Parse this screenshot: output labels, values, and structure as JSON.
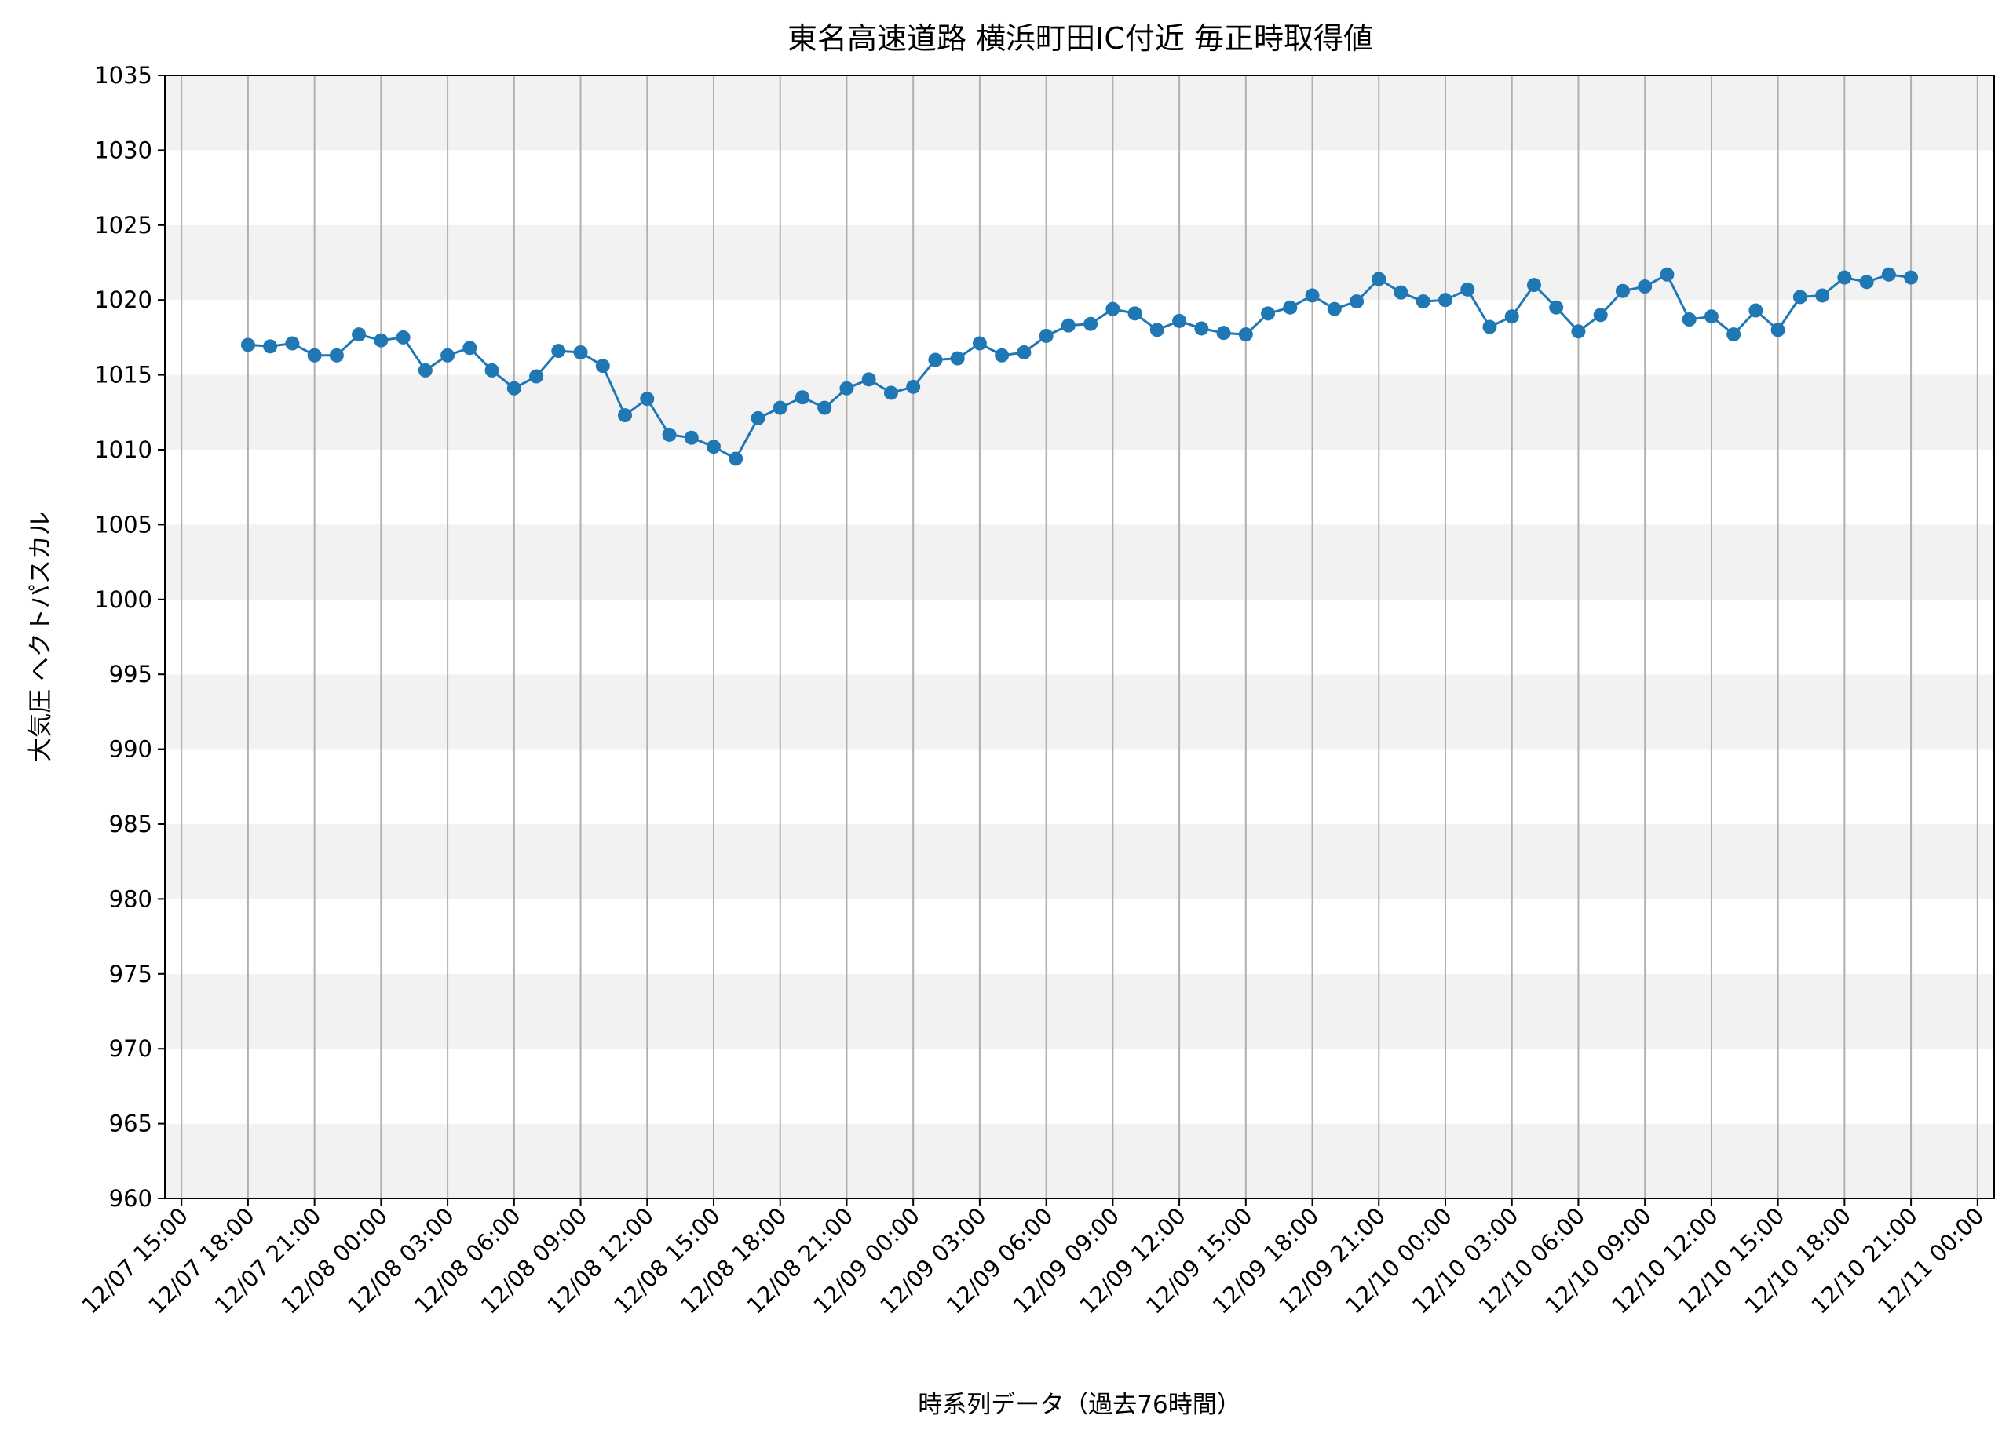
{
  "chart_data": {
    "type": "line",
    "title": "東名高速道路 横浜町田IC付近 毎正時取得値",
    "xlabel": "時系列データ（過去76時間）",
    "ylabel": "大気圧 ヘクトパスカル",
    "ylim": [
      960,
      1035
    ],
    "yticks": [
      960,
      965,
      970,
      975,
      980,
      985,
      990,
      995,
      1000,
      1005,
      1010,
      1015,
      1020,
      1025,
      1030,
      1035
    ],
    "xlim": [
      "12/07 14:15",
      "12/11 00:45"
    ],
    "xticks": [
      "12/07 15:00",
      "12/07 18:00",
      "12/07 21:00",
      "12/08 00:00",
      "12/08 03:00",
      "12/08 06:00",
      "12/08 09:00",
      "12/08 12:00",
      "12/08 15:00",
      "12/08 18:00",
      "12/08 21:00",
      "12/09 00:00",
      "12/09 03:00",
      "12/09 06:00",
      "12/09 09:00",
      "12/09 12:00",
      "12/09 15:00",
      "12/09 18:00",
      "12/09 21:00",
      "12/10 00:00",
      "12/10 03:00",
      "12/10 06:00",
      "12/10 09:00",
      "12/10 12:00",
      "12/10 15:00",
      "12/10 18:00",
      "12/10 21:00",
      "12/11 00:00"
    ],
    "grid": "vertical lines at x ticks; alternating gray horizontal bands every 5 hPa",
    "colors": {
      "line": "#1f77b4",
      "band": "#f2f2f2",
      "grid": "#b0b0b0"
    },
    "series": [
      {
        "x": [
          "12/07 18:00",
          "12/07 19:00",
          "12/07 20:00",
          "12/07 21:00",
          "12/07 22:00",
          "12/07 23:00",
          "12/08 00:00",
          "12/08 01:00",
          "12/08 02:00",
          "12/08 03:00",
          "12/08 04:00",
          "12/08 05:00",
          "12/08 06:00",
          "12/08 07:00",
          "12/08 08:00",
          "12/08 09:00",
          "12/08 10:00",
          "12/08 11:00",
          "12/08 12:00",
          "12/08 13:00",
          "12/08 14:00",
          "12/08 15:00",
          "12/08 16:00",
          "12/08 17:00",
          "12/08 18:00",
          "12/08 19:00",
          "12/08 20:00",
          "12/08 21:00",
          "12/08 22:00",
          "12/08 23:00",
          "12/09 00:00",
          "12/09 01:00",
          "12/09 02:00",
          "12/09 03:00",
          "12/09 04:00",
          "12/09 05:00",
          "12/09 06:00",
          "12/09 07:00",
          "12/09 08:00",
          "12/09 09:00",
          "12/09 10:00",
          "12/09 11:00",
          "12/09 12:00",
          "12/09 13:00",
          "12/09 14:00",
          "12/09 15:00",
          "12/09 16:00",
          "12/09 17:00",
          "12/09 18:00",
          "12/09 19:00",
          "12/09 20:00",
          "12/09 21:00",
          "12/09 22:00",
          "12/09 23:00",
          "12/10 00:00",
          "12/10 01:00",
          "12/10 02:00",
          "12/10 03:00",
          "12/10 04:00",
          "12/10 05:00",
          "12/10 06:00",
          "12/10 07:00",
          "12/10 08:00",
          "12/10 09:00",
          "12/10 10:00",
          "12/10 11:00",
          "12/10 12:00",
          "12/10 13:00",
          "12/10 14:00",
          "12/10 15:00",
          "12/10 16:00",
          "12/10 17:00",
          "12/10 18:00",
          "12/10 19:00",
          "12/10 20:00",
          "12/10 21:00"
        ],
        "values": [
          1017.0,
          1016.9,
          1017.1,
          1016.3,
          1016.3,
          1017.7,
          1017.3,
          1017.5,
          1015.3,
          1016.3,
          1016.8,
          1015.3,
          1014.1,
          1014.9,
          1016.6,
          1016.5,
          1015.6,
          1012.3,
          1013.4,
          1011.0,
          1010.8,
          1010.2,
          1009.4,
          1012.1,
          1012.8,
          1013.5,
          1012.8,
          1014.1,
          1014.7,
          1013.8,
          1014.2,
          1016.0,
          1016.1,
          1017.1,
          1016.3,
          1016.5,
          1017.6,
          1018.3,
          1018.4,
          1019.4,
          1019.1,
          1018.0,
          1018.6,
          1018.1,
          1017.8,
          1017.7,
          1019.1,
          1019.5,
          1020.3,
          1019.4,
          1019.9,
          1021.4,
          1020.5,
          1019.9,
          1020.0,
          1020.7,
          1018.2,
          1018.9,
          1021.0,
          1019.5,
          1017.9,
          1019.0,
          1020.6,
          1020.9,
          1021.7,
          1018.7,
          1018.9,
          1017.7,
          1019.3,
          1018.0,
          1020.2,
          1020.3,
          1021.5,
          1021.2,
          1021.7,
          1021.5
        ]
      }
    ]
  }
}
